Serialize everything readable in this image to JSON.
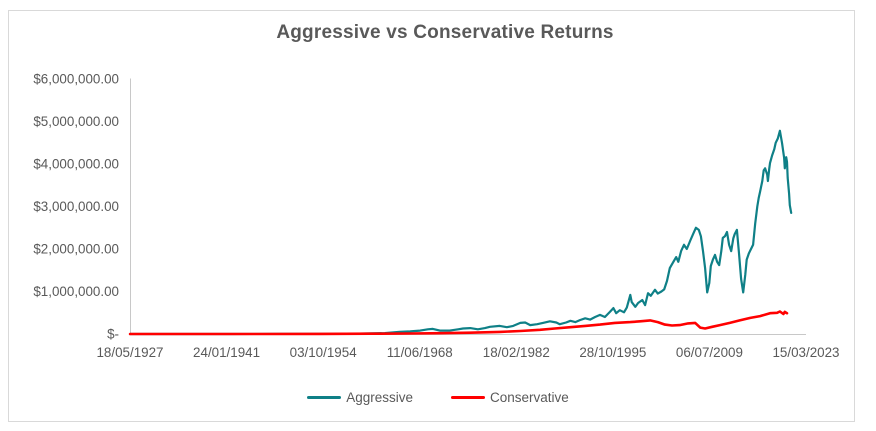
{
  "chart_data": {
    "type": "line",
    "title": "Aggressive vs Conservative Returns",
    "grid": "off",
    "legend_position": "bottom",
    "colors": {
      "aggressive": "#0f8087",
      "conservative": "#ff0000",
      "text": "#595959",
      "axis_line": "#c8c8c8",
      "frame_border": "#d9d9d9"
    },
    "y_axis": {
      "min": 0,
      "max": 6000000,
      "tick_labels": [
        "$6,000,000.00",
        "$5,000,000.00",
        "$4,000,000.00",
        "$3,000,000.00",
        "$2,000,000.00",
        "$1,000,000.00",
        "$-"
      ]
    },
    "x_axis": {
      "range": [
        1927.38,
        2023.2
      ],
      "tick_labels": [
        "18/05/1927",
        "24/01/1941",
        "03/10/1954",
        "11/06/1968",
        "18/02/1982",
        "28/10/1995",
        "06/07/2009",
        "15/03/2023"
      ]
    },
    "legend": [
      {
        "name": "Aggressive",
        "color": "#0f8087"
      },
      {
        "name": "Conservative",
        "color": "#ff0000"
      }
    ],
    "series": [
      {
        "name": "Aggressive",
        "color": "#0f8087",
        "width": 2.2,
        "points": [
          [
            1927.4,
            100
          ],
          [
            1934.5,
            200
          ],
          [
            1941.6,
            500
          ],
          [
            1948.6,
            1200
          ],
          [
            1955.7,
            4000
          ],
          [
            1960.0,
            9000
          ],
          [
            1963.5,
            20000
          ],
          [
            1965.6,
            50000
          ],
          [
            1967.1,
            60000
          ],
          [
            1968.5,
            80000
          ],
          [
            1969.6,
            110000
          ],
          [
            1970.3,
            120000
          ],
          [
            1971.3,
            80000
          ],
          [
            1972.7,
            80000
          ],
          [
            1973.9,
            110000
          ],
          [
            1974.6,
            130000
          ],
          [
            1975.6,
            140000
          ],
          [
            1976.7,
            110000
          ],
          [
            1977.7,
            140000
          ],
          [
            1978.4,
            170000
          ],
          [
            1979.8,
            190000
          ],
          [
            1980.8,
            160000
          ],
          [
            1981.7,
            190000
          ],
          [
            1982.7,
            260000
          ],
          [
            1983.4,
            270000
          ],
          [
            1984.1,
            210000
          ],
          [
            1985.1,
            230000
          ],
          [
            1985.9,
            260000
          ],
          [
            1986.9,
            300000
          ],
          [
            1987.8,
            270000
          ],
          [
            1988.3,
            230000
          ],
          [
            1989.2,
            270000
          ],
          [
            1989.8,
            310000
          ],
          [
            1990.5,
            280000
          ],
          [
            1991.2,
            330000
          ],
          [
            1991.9,
            370000
          ],
          [
            1992.6,
            340000
          ],
          [
            1993.3,
            400000
          ],
          [
            1994.0,
            450000
          ],
          [
            1994.7,
            400000
          ],
          [
            1995.4,
            520000
          ],
          [
            1995.9,
            610000
          ],
          [
            1996.3,
            490000
          ],
          [
            1996.8,
            560000
          ],
          [
            1997.4,
            510000
          ],
          [
            1997.8,
            620000
          ],
          [
            1998.3,
            920000
          ],
          [
            1998.5,
            750000
          ],
          [
            1999.0,
            640000
          ],
          [
            1999.4,
            730000
          ],
          [
            2000.0,
            800000
          ],
          [
            2000.4,
            680000
          ],
          [
            2000.8,
            960000
          ],
          [
            2001.2,
            900000
          ],
          [
            2001.8,
            1040000
          ],
          [
            2002.2,
            950000
          ],
          [
            2002.7,
            1000000
          ],
          [
            2003.1,
            1050000
          ],
          [
            2003.5,
            1250000
          ],
          [
            2003.9,
            1550000
          ],
          [
            2004.4,
            1700000
          ],
          [
            2004.8,
            1810000
          ],
          [
            2005.1,
            1700000
          ],
          [
            2005.5,
            1950000
          ],
          [
            2005.9,
            2100000
          ],
          [
            2006.3,
            2000000
          ],
          [
            2006.8,
            2200000
          ],
          [
            2007.2,
            2350000
          ],
          [
            2007.6,
            2500000
          ],
          [
            2008.0,
            2450000
          ],
          [
            2008.3,
            2300000
          ],
          [
            2008.6,
            1950000
          ],
          [
            2008.9,
            1550000
          ],
          [
            2009.2,
            980000
          ],
          [
            2009.5,
            1200000
          ],
          [
            2009.7,
            1600000
          ],
          [
            2010.0,
            1750000
          ],
          [
            2010.3,
            1860000
          ],
          [
            2010.6,
            1700000
          ],
          [
            2010.9,
            1620000
          ],
          [
            2011.2,
            1950000
          ],
          [
            2011.4,
            2260000
          ],
          [
            2011.7,
            2300000
          ],
          [
            2012.0,
            2400000
          ],
          [
            2012.3,
            2100000
          ],
          [
            2012.6,
            1950000
          ],
          [
            2012.9,
            2250000
          ],
          [
            2013.1,
            2350000
          ],
          [
            2013.4,
            2450000
          ],
          [
            2013.7,
            1900000
          ],
          [
            2014.0,
            1300000
          ],
          [
            2014.3,
            980000
          ],
          [
            2014.6,
            1400000
          ],
          [
            2014.8,
            1750000
          ],
          [
            2015.1,
            1900000
          ],
          [
            2015.4,
            2000000
          ],
          [
            2015.7,
            2100000
          ],
          [
            2016.0,
            2600000
          ],
          [
            2016.3,
            3000000
          ],
          [
            2016.5,
            3200000
          ],
          [
            2016.7,
            3350000
          ],
          [
            2017.0,
            3600000
          ],
          [
            2017.2,
            3850000
          ],
          [
            2017.4,
            3900000
          ],
          [
            2017.7,
            3750000
          ],
          [
            2017.8,
            3600000
          ],
          [
            2018.0,
            3900000
          ],
          [
            2018.1,
            4020000
          ],
          [
            2018.4,
            4200000
          ],
          [
            2018.7,
            4350000
          ],
          [
            2018.9,
            4500000
          ],
          [
            2019.2,
            4600000
          ],
          [
            2019.5,
            4780000
          ],
          [
            2019.8,
            4500000
          ],
          [
            2020.1,
            4150000
          ],
          [
            2020.2,
            3900000
          ],
          [
            2020.4,
            4160000
          ],
          [
            2020.5,
            4050000
          ],
          [
            2020.6,
            3670000
          ],
          [
            2020.8,
            3300000
          ],
          [
            2020.9,
            3030000
          ],
          [
            2021.1,
            2850000
          ]
        ]
      },
      {
        "name": "Conservative",
        "color": "#ff0000",
        "width": 2.6,
        "points": [
          [
            1927.4,
            100
          ],
          [
            1937.3,
            400
          ],
          [
            1945.8,
            1000
          ],
          [
            1954.3,
            3000
          ],
          [
            1961.4,
            6000
          ],
          [
            1967.1,
            12000
          ],
          [
            1971.3,
            18000
          ],
          [
            1975.6,
            30000
          ],
          [
            1979.8,
            50000
          ],
          [
            1982.7,
            70000
          ],
          [
            1985.5,
            100000
          ],
          [
            1987.6,
            130000
          ],
          [
            1989.8,
            160000
          ],
          [
            1991.9,
            190000
          ],
          [
            1994.0,
            220000
          ],
          [
            1996.1,
            260000
          ],
          [
            1998.3,
            280000
          ],
          [
            1999.7,
            300000
          ],
          [
            2001.1,
            320000
          ],
          [
            2002.2,
            280000
          ],
          [
            2003.2,
            220000
          ],
          [
            2004.2,
            200000
          ],
          [
            2005.3,
            210000
          ],
          [
            2006.5,
            250000
          ],
          [
            2007.5,
            260000
          ],
          [
            2008.2,
            150000
          ],
          [
            2008.9,
            130000
          ],
          [
            2009.9,
            170000
          ],
          [
            2011.0,
            210000
          ],
          [
            2012.4,
            260000
          ],
          [
            2013.8,
            320000
          ],
          [
            2015.3,
            380000
          ],
          [
            2016.7,
            420000
          ],
          [
            2018.1,
            490000
          ],
          [
            2019.1,
            500000
          ],
          [
            2019.5,
            530000
          ],
          [
            2020.0,
            470000
          ],
          [
            2020.2,
            520000
          ],
          [
            2020.5,
            490000
          ]
        ]
      }
    ]
  }
}
